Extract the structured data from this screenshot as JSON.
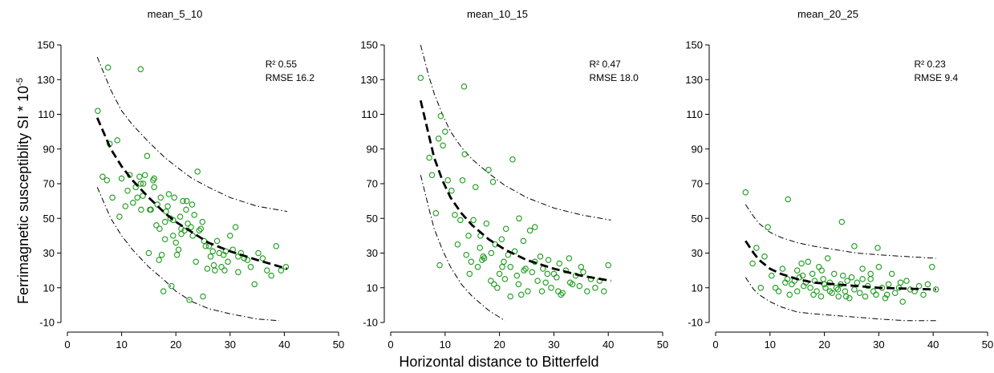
{
  "figure": {
    "ylabel": "Ferrimagnetic susceptiblity SI * 10",
    "ylabel_sup": "-5",
    "xlabel": "Horizontal distance to Bitterfeld"
  },
  "chart_data": [
    {
      "type": "scatter",
      "title": "mean_5_10",
      "xlim": [
        0,
        50
      ],
      "ylim": [
        -10,
        150
      ],
      "xticks": [
        0,
        10,
        20,
        30,
        40,
        50
      ],
      "yticks": [
        -10,
        10,
        30,
        50,
        70,
        90,
        110,
        130,
        150
      ],
      "stats": {
        "r2": "R² 0.55",
        "rmse": "RMSE  16.2"
      },
      "fit": {
        "x": [
          5.5,
          8,
          10,
          12,
          15,
          18,
          20,
          23,
          26,
          30,
          35,
          40.5
        ],
        "y": [
          108,
          90,
          80,
          72,
          62,
          53,
          48,
          42,
          36,
          31,
          26,
          21
        ]
      },
      "upper": {
        "x": [
          5.5,
          8,
          10,
          12,
          15,
          18,
          20,
          23,
          26,
          30,
          35,
          40.5
        ],
        "y": [
          143,
          124,
          112,
          104,
          94,
          85,
          80,
          73,
          68,
          62,
          57,
          54
        ]
      },
      "lower": {
        "x": [
          5.5,
          8,
          10,
          12,
          15,
          18,
          20,
          23,
          26,
          30,
          35,
          39
        ],
        "y": [
          68,
          50,
          40,
          32,
          22,
          14,
          8,
          2,
          -2,
          -5,
          -8,
          -9
        ]
      },
      "points": {
        "x": [
          5.6,
          6.5,
          7.3,
          7.8,
          8.3,
          9.2,
          9.6,
          10.0,
          10.7,
          11.1,
          11.5,
          12.1,
          12.6,
          12.9,
          13.3,
          13.5,
          13.6,
          13.9,
          14.3,
          14.7,
          15.0,
          15.2,
          15.4,
          15.8,
          16.0,
          16.4,
          16.6,
          16.9,
          17.2,
          17.4,
          17.7,
          18.0,
          18.2,
          18.5,
          18.7,
          19.0,
          19.2,
          19.5,
          19.7,
          20.0,
          20.2,
          20.5,
          20.8,
          21.0,
          21.3,
          21.6,
          21.9,
          22.2,
          22.5,
          22.8,
          23.1,
          23.4,
          23.7,
          24.0,
          24.3,
          24.6,
          24.9,
          25.2,
          25.5,
          25.8,
          26.1,
          26.4,
          26.8,
          27.2,
          27.6,
          28.0,
          28.4,
          28.8,
          29.2,
          29.6,
          30.0,
          30.5,
          31.0,
          31.5,
          32.0,
          32.6,
          33.2,
          33.8,
          34.5,
          35.2,
          36.0,
          36.8,
          37.6,
          38.5,
          39.4,
          40.3,
          13.5,
          7.5,
          23.0,
          17.0,
          19.5,
          21.0,
          18.0,
          22.0,
          25.0,
          27.0,
          29.0,
          31.5,
          14.0,
          16.0
        ],
        "y": [
          112,
          74,
          72,
          93,
          62,
          95,
          51,
          73,
          57,
          66,
          75,
          59,
          68,
          62,
          74,
          70,
          55,
          63,
          75,
          86,
          30,
          55,
          55,
          72,
          68,
          46,
          58,
          26,
          62,
          29,
          8,
          38,
          54,
          57,
          64,
          50,
          11,
          40,
          62,
          36,
          29,
          32,
          51,
          41,
          60,
          43,
          55,
          47,
          3,
          45,
          40,
          52,
          25,
          77,
          43,
          44,
          48,
          37,
          34,
          21,
          34,
          28,
          31,
          20,
          37,
          30,
          22,
          29,
          31,
          25,
          40,
          32,
          45,
          19,
          30,
          27,
          26,
          22,
          12,
          30,
          27,
          20,
          17,
          34,
          20,
          22,
          136,
          137,
          58,
          44,
          49,
          44,
          48,
          60,
          5,
          23,
          20,
          28,
          70,
          73
        ]
      }
    },
    {
      "type": "scatter",
      "title": "mean_10_15",
      "xlim": [
        0,
        50
      ],
      "ylim": [
        -10,
        150
      ],
      "xticks": [
        0,
        10,
        20,
        30,
        40,
        50
      ],
      "yticks": [
        -10,
        10,
        30,
        50,
        70,
        90,
        110,
        130,
        150
      ],
      "stats": {
        "r2": "R² 0.47",
        "rmse": "RMSE  18.0"
      },
      "fit": {
        "x": [
          5.5,
          7,
          8,
          9.5,
          11,
          13,
          15,
          18,
          21,
          25,
          30,
          35,
          40.5
        ],
        "y": [
          118,
          98,
          85,
          72,
          62,
          53,
          46,
          38,
          32,
          26,
          21,
          17,
          14
        ]
      },
      "upper": {
        "x": [
          5.5,
          7,
          8,
          9.5,
          11,
          13,
          15,
          18,
          21,
          25,
          30,
          35,
          40.5
        ],
        "y": [
          150,
          132,
          122,
          110,
          100,
          91,
          84,
          76,
          69,
          62,
          56,
          52,
          49
        ]
      },
      "lower": {
        "x": [
          5.5,
          7,
          8,
          9.5,
          11,
          13,
          15,
          18,
          21
        ],
        "y": [
          75,
          56,
          44,
          32,
          22,
          12,
          5,
          -3,
          -9
        ]
      },
      "points": {
        "x": [
          5.5,
          7.1,
          7.6,
          8.3,
          8.8,
          9.2,
          9.6,
          10.0,
          10.5,
          11.2,
          11.8,
          12.3,
          12.8,
          13.2,
          13.6,
          13.9,
          14.3,
          14.8,
          15.2,
          15.6,
          16.0,
          16.4,
          16.8,
          17.2,
          17.6,
          18.0,
          18.4,
          18.8,
          19.2,
          19.6,
          20.0,
          20.4,
          20.8,
          21.2,
          21.6,
          22.0,
          22.4,
          22.8,
          23.2,
          23.6,
          24.0,
          24.4,
          24.8,
          25.2,
          25.6,
          26.0,
          26.5,
          27.0,
          27.5,
          28.0,
          28.5,
          29.0,
          29.5,
          30.0,
          30.5,
          31.0,
          31.6,
          32.2,
          32.8,
          33.4,
          34.0,
          34.7,
          35.4,
          36.1,
          36.8,
          37.6,
          38.4,
          39.2,
          40.0,
          13.5,
          9.0,
          19.0,
          22.0,
          16.5,
          18.5,
          21.0,
          24.5,
          26.5,
          28.8,
          30.8,
          33.0,
          35.0,
          17.0,
          20.5,
          23.5,
          27.8,
          31.3,
          14.5
        ],
        "y": [
          131,
          85,
          75,
          53,
          96,
          109,
          92,
          100,
          72,
          66,
          52,
          35,
          49,
          72,
          87,
          29,
          40,
          25,
          49,
          68,
          22,
          33,
          26,
          27,
          47,
          78,
          14,
          71,
          35,
          10,
          18,
          38,
          25,
          44,
          29,
          22,
          84,
          31,
          17,
          50,
          6,
          37,
          21,
          8,
          43,
          19,
          45,
          14,
          28,
          21,
          13,
          26,
          10,
          18,
          16,
          24,
          7,
          20,
          27,
          12,
          17,
          11,
          19,
          8,
          15,
          10,
          14,
          8,
          23,
          126,
          23,
          12,
          5,
          40,
          30,
          15,
          20,
          25,
          18,
          8,
          13,
          22,
          28,
          22,
          12,
          8,
          6,
          18
        ]
      }
    },
    {
      "type": "scatter",
      "title": "mean_20_25",
      "xlim": [
        0,
        50
      ],
      "ylim": [
        -10,
        150
      ],
      "xticks": [
        0,
        10,
        20,
        30,
        40,
        50
      ],
      "yticks": [
        -10,
        10,
        30,
        50,
        70,
        90,
        110,
        130,
        150
      ],
      "stats": {
        "r2": "R² 0.23",
        "rmse": "RMSE  9.4"
      },
      "fit": {
        "x": [
          5.5,
          7,
          8,
          10,
          12,
          15,
          18,
          22,
          26,
          30,
          35,
          40.5
        ],
        "y": [
          37,
          30,
          26,
          21,
          18,
          15,
          13,
          12,
          11,
          10,
          9.5,
          9
        ]
      },
      "upper": {
        "x": [
          5.5,
          7,
          8,
          10,
          12,
          15,
          18,
          22,
          26,
          30,
          35,
          40.5
        ],
        "y": [
          58,
          51,
          47,
          42,
          39,
          36,
          34,
          32,
          30,
          29,
          28,
          27
        ]
      },
      "lower": {
        "x": [
          5.5,
          7,
          8,
          10,
          12,
          15,
          18,
          22,
          26,
          30,
          35,
          40.5
        ],
        "y": [
          16,
          9,
          6,
          2,
          -1,
          -4,
          -5,
          -6,
          -7,
          -8,
          -9,
          -9
        ]
      },
      "points": {
        "x": [
          5.5,
          6.8,
          7.5,
          8.3,
          9.0,
          9.6,
          10.3,
          11.0,
          11.6,
          12.3,
          12.8,
          13.2,
          13.6,
          14.0,
          14.5,
          15.0,
          15.4,
          15.8,
          16.2,
          16.6,
          17.0,
          17.4,
          17.8,
          18.2,
          18.6,
          19.0,
          19.4,
          19.8,
          20.2,
          20.6,
          21.0,
          21.4,
          21.8,
          22.2,
          22.6,
          23.0,
          23.4,
          23.8,
          24.2,
          24.6,
          25.0,
          25.5,
          26.0,
          26.5,
          27.0,
          27.5,
          28.0,
          28.5,
          29.0,
          29.5,
          30.0,
          30.6,
          31.2,
          31.8,
          32.4,
          33.0,
          33.7,
          34.4,
          35.1,
          35.8,
          36.6,
          37.4,
          38.2,
          39.0,
          39.8,
          40.5,
          13.3,
          23.2,
          18.0,
          21.0,
          24.0,
          27.0,
          29.8,
          16.0,
          19.5,
          22.5,
          25.5,
          28.5,
          31.5,
          34.0,
          15.0,
          20.0
        ],
        "y": [
          65,
          24,
          33,
          10,
          28,
          45,
          17,
          10,
          8,
          21,
          13,
          15,
          6,
          12,
          14,
          8,
          16,
          24,
          11,
          13,
          25,
          10,
          18,
          14,
          8,
          22,
          5,
          15,
          10,
          27,
          13,
          7,
          18,
          10,
          5,
          12,
          17,
          8,
          14,
          4,
          16,
          9,
          13,
          7,
          21,
          5,
          11,
          15,
          8,
          6,
          22,
          10,
          4,
          12,
          18,
          7,
          10,
          2,
          14,
          9,
          8,
          11,
          6,
          12,
          22,
          9,
          61,
          48,
          6,
          8,
          5,
          15,
          33,
          17,
          20,
          9,
          34,
          18,
          6,
          13,
          20,
          12
        ]
      }
    }
  ]
}
